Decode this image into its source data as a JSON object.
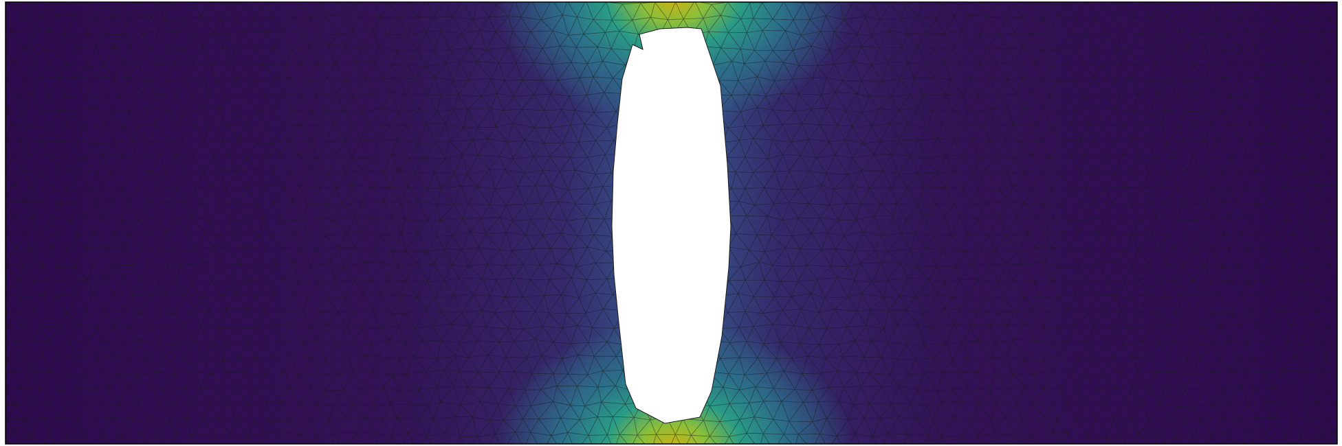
{
  "figure": {
    "kind": "finite-element-mesh-field",
    "colormap": "viridis",
    "mesh_type": "triangular",
    "hole_shape": "elongated-ellipse",
    "colorbar": "none",
    "axes": "none",
    "text_labels": "none",
    "mesh_edge_color": "#1a1a1a",
    "background_color": "#ffffff",
    "hole_color": "#ffffff",
    "field_low_color": "#2d0b4e",
    "field_high_color": "#c9b215"
  }
}
